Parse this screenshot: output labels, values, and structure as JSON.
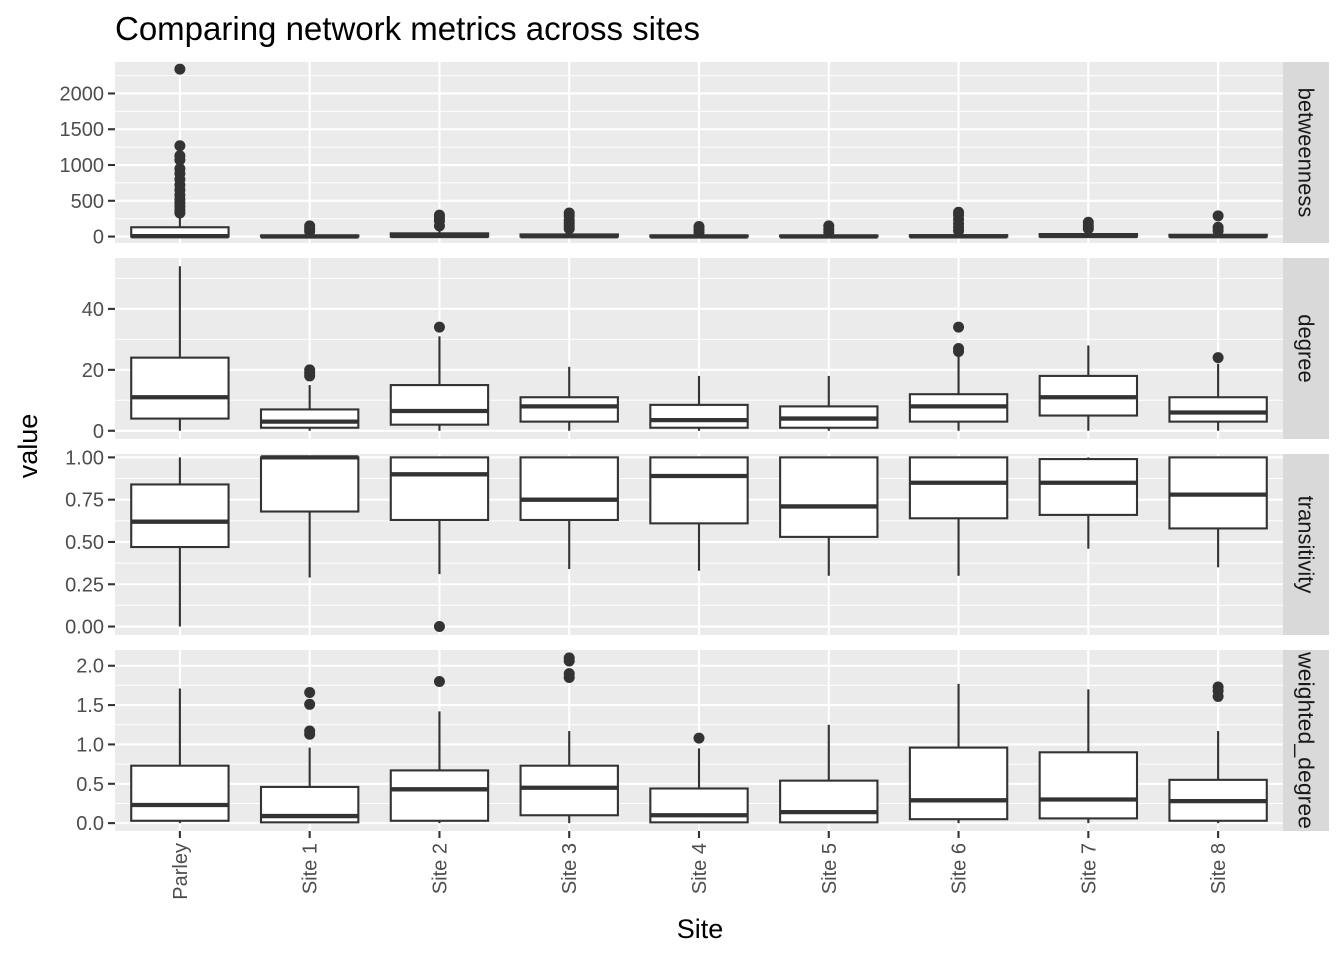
{
  "chart_data": {
    "type": "boxplot",
    "title": "Comparing network metrics across sites",
    "xlabel": "Site",
    "ylabel": "value",
    "categories": [
      "Parley",
      "Site 1",
      "Site 2",
      "Site 3",
      "Site 4",
      "Site 5",
      "Site 6",
      "Site 7",
      "Site 8"
    ],
    "grid": true,
    "facets": [
      {
        "name": "betweenness",
        "ylim": [
          -90,
          2440
        ],
        "yticks": [
          0,
          500,
          1000,
          1500,
          2000
        ],
        "ytick_labels": [
          "0",
          "500",
          "1000",
          "1500",
          "2000"
        ],
        "boxes": [
          {
            "whisker_low": 0,
            "q1": 0,
            "median": 5,
            "q3": 130,
            "whisker_high": 300,
            "outliers": [
              330,
              370,
              420,
              470,
              520,
              580,
              650,
              720,
              800,
              880,
              950,
              1070,
              1130,
              1270,
              2340
            ]
          },
          {
            "whisker_low": 0,
            "q1": 0,
            "median": 2,
            "q3": 15,
            "whisker_high": 40,
            "outliers": [
              70,
              110,
              150
            ]
          },
          {
            "whisker_low": 0,
            "q1": 0,
            "median": 8,
            "q3": 45,
            "whisker_high": 110,
            "outliers": [
              150,
              220,
              260,
              300
            ]
          },
          {
            "whisker_low": 0,
            "q1": 0,
            "median": 5,
            "q3": 30,
            "whisker_high": 80,
            "outliers": [
              110,
              150,
              190,
              230,
              290,
              330
            ]
          },
          {
            "whisker_low": 0,
            "q1": 0,
            "median": 2,
            "q3": 15,
            "whisker_high": 40,
            "outliers": [
              60,
              100,
              140
            ]
          },
          {
            "whisker_low": 0,
            "q1": 0,
            "median": 2,
            "q3": 15,
            "whisker_high": 40,
            "outliers": [
              60,
              100,
              150
            ]
          },
          {
            "whisker_low": 0,
            "q1": 0,
            "median": 3,
            "q3": 20,
            "whisker_high": 50,
            "outliers": [
              80,
              130,
              180,
              240,
              300,
              340
            ]
          },
          {
            "whisker_low": 0,
            "q1": 0,
            "median": 8,
            "q3": 35,
            "whisker_high": 90,
            "outliers": [
              110,
              150,
              200
            ]
          },
          {
            "whisker_low": 0,
            "q1": 0,
            "median": 5,
            "q3": 25,
            "whisker_high": 60,
            "outliers": [
              80,
              130,
              290
            ]
          }
        ]
      },
      {
        "name": "degree",
        "ylim": [
          -2.7,
          56.7
        ],
        "yticks": [
          0,
          20,
          40
        ],
        "ytick_labels": [
          "0",
          "20",
          "40"
        ],
        "boxes": [
          {
            "whisker_low": 0,
            "q1": 4,
            "median": 11,
            "q3": 24,
            "whisker_high": 54,
            "outliers": []
          },
          {
            "whisker_low": 0,
            "q1": 1,
            "median": 3,
            "q3": 7,
            "whisker_high": 15,
            "outliers": [
              18,
              19,
              20
            ]
          },
          {
            "whisker_low": 0,
            "q1": 2,
            "median": 6.5,
            "q3": 15,
            "whisker_high": 31,
            "outliers": [
              34
            ]
          },
          {
            "whisker_low": 0,
            "q1": 3,
            "median": 8,
            "q3": 11,
            "whisker_high": 21,
            "outliers": []
          },
          {
            "whisker_low": 0,
            "q1": 1,
            "median": 3.5,
            "q3": 8.5,
            "whisker_high": 18,
            "outliers": []
          },
          {
            "whisker_low": 0,
            "q1": 1,
            "median": 4,
            "q3": 8,
            "whisker_high": 18,
            "outliers": []
          },
          {
            "whisker_low": 0,
            "q1": 3,
            "median": 8,
            "q3": 12,
            "whisker_high": 25,
            "outliers": [
              26,
              27,
              34
            ]
          },
          {
            "whisker_low": 0,
            "q1": 5,
            "median": 11,
            "q3": 18,
            "whisker_high": 28,
            "outliers": []
          },
          {
            "whisker_low": 0,
            "q1": 3,
            "median": 6,
            "q3": 11,
            "whisker_high": 22,
            "outliers": [
              24
            ]
          }
        ]
      },
      {
        "name": "transitivity",
        "ylim": [
          -0.05,
          1.02
        ],
        "yticks": [
          0,
          0.25,
          0.5,
          0.75,
          1.0
        ],
        "ytick_labels": [
          "0.00",
          "0.25",
          "0.50",
          "0.75",
          "1.00"
        ],
        "boxes": [
          {
            "whisker_low": 0.0,
            "q1": 0.47,
            "median": 0.62,
            "q3": 0.84,
            "whisker_high": 1.0,
            "outliers": []
          },
          {
            "whisker_low": 0.29,
            "q1": 0.68,
            "median": 1.0,
            "q3": 1.0,
            "whisker_high": 1.0,
            "outliers": []
          },
          {
            "whisker_low": 0.31,
            "q1": 0.63,
            "median": 0.9,
            "q3": 1.0,
            "whisker_high": 1.0,
            "outliers": [
              0.0
            ]
          },
          {
            "whisker_low": 0.34,
            "q1": 0.63,
            "median": 0.75,
            "q3": 1.0,
            "whisker_high": 1.0,
            "outliers": []
          },
          {
            "whisker_low": 0.33,
            "q1": 0.61,
            "median": 0.89,
            "q3": 1.0,
            "whisker_high": 1.0,
            "outliers": []
          },
          {
            "whisker_low": 0.3,
            "q1": 0.53,
            "median": 0.71,
            "q3": 1.0,
            "whisker_high": 1.0,
            "outliers": []
          },
          {
            "whisker_low": 0.3,
            "q1": 0.64,
            "median": 0.85,
            "q3": 1.0,
            "whisker_high": 1.0,
            "outliers": []
          },
          {
            "whisker_low": 0.46,
            "q1": 0.66,
            "median": 0.85,
            "q3": 0.99,
            "whisker_high": 1.0,
            "outliers": []
          },
          {
            "whisker_low": 0.35,
            "q1": 0.58,
            "median": 0.78,
            "q3": 1.0,
            "whisker_high": 1.0,
            "outliers": []
          }
        ]
      },
      {
        "name": "weighted_degree",
        "ylim": [
          -0.1,
          2.2
        ],
        "yticks": [
          0,
          0.5,
          1.0,
          1.5,
          2.0
        ],
        "ytick_labels": [
          "0.0",
          "0.5",
          "1.0",
          "1.5",
          "2.0"
        ],
        "boxes": [
          {
            "whisker_low": 0,
            "q1": 0.03,
            "median": 0.23,
            "q3": 0.73,
            "whisker_high": 1.71,
            "outliers": []
          },
          {
            "whisker_low": 0,
            "q1": 0.01,
            "median": 0.09,
            "q3": 0.46,
            "whisker_high": 0.96,
            "outliers": [
              1.13,
              1.17,
              1.51,
              1.66
            ]
          },
          {
            "whisker_low": 0,
            "q1": 0.03,
            "median": 0.43,
            "q3": 0.67,
            "whisker_high": 1.42,
            "outliers": [
              1.8
            ]
          },
          {
            "whisker_low": 0,
            "q1": 0.1,
            "median": 0.45,
            "q3": 0.73,
            "whisker_high": 1.17,
            "outliers": [
              1.85,
              1.9,
              2.06,
              2.1
            ]
          },
          {
            "whisker_low": 0,
            "q1": 0.01,
            "median": 0.1,
            "q3": 0.44,
            "whisker_high": 0.95,
            "outliers": [
              1.08
            ]
          },
          {
            "whisker_low": 0,
            "q1": 0.01,
            "median": 0.14,
            "q3": 0.54,
            "whisker_high": 1.25,
            "outliers": []
          },
          {
            "whisker_low": 0,
            "q1": 0.05,
            "median": 0.29,
            "q3": 0.96,
            "whisker_high": 1.77,
            "outliers": []
          },
          {
            "whisker_low": 0,
            "q1": 0.06,
            "median": 0.3,
            "q3": 0.9,
            "whisker_high": 1.7,
            "outliers": []
          },
          {
            "whisker_low": 0,
            "q1": 0.03,
            "median": 0.28,
            "q3": 0.55,
            "whisker_high": 1.17,
            "outliers": [
              1.61,
              1.68,
              1.73
            ]
          }
        ]
      }
    ]
  }
}
